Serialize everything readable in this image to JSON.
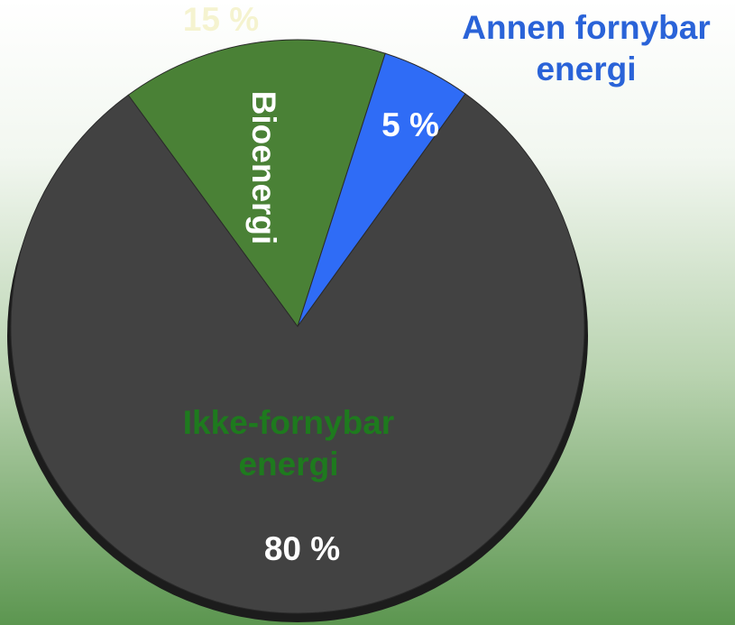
{
  "chart_data": {
    "type": "pie",
    "categories": [
      "Bioenergi",
      "Annen fornybar energi",
      "Ikke-fornybar energi"
    ],
    "values": [
      15,
      5,
      80
    ],
    "value_labels": [
      "15 %",
      "5 %",
      "80 %"
    ],
    "colors": [
      "#4a8136",
      "#2f6cf6",
      "#424242"
    ]
  }
}
